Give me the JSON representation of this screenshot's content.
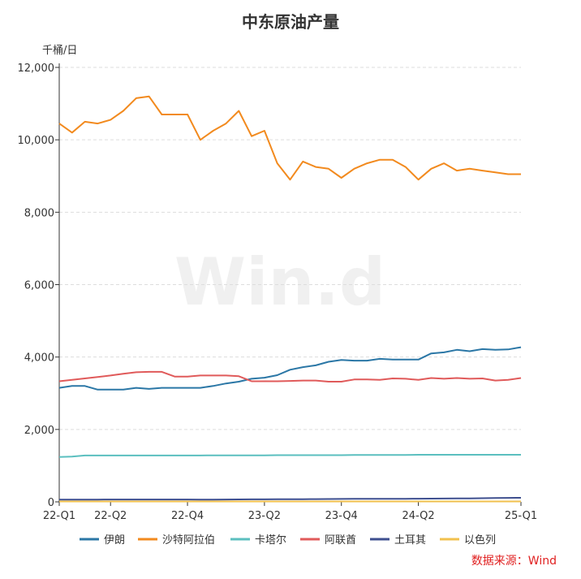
{
  "chart_data": {
    "type": "line",
    "title": "中东原油产量",
    "ylabel": "千桶/日",
    "xlabel": "",
    "ylim": [
      0,
      12000
    ],
    "yticks": [
      0,
      2000,
      4000,
      6000,
      8000,
      10000,
      12000
    ],
    "ytick_labels": [
      "0",
      "2,000",
      "4,000",
      "6,000",
      "8,000",
      "10,000",
      "12,000"
    ],
    "x_count": 37,
    "xtick_labels": [
      {
        "index": 0,
        "label": "22-Q1"
      },
      {
        "index": 4,
        "label": "22-Q2"
      },
      {
        "index": 10,
        "label": "22-Q4"
      },
      {
        "index": 16,
        "label": "23-Q2"
      },
      {
        "index": 22,
        "label": "23-Q4"
      },
      {
        "index": 28,
        "label": "24-Q2"
      },
      {
        "index": 36,
        "label": "25-Q1"
      }
    ],
    "grid": true,
    "legend_position": "bottom",
    "series": [
      {
        "name": "伊朗",
        "color": "#2b77a6",
        "values": [
          3150,
          3200,
          3200,
          3100,
          3100,
          3100,
          3150,
          3120,
          3150,
          3150,
          3150,
          3150,
          3200,
          3270,
          3320,
          3400,
          3430,
          3500,
          3650,
          3720,
          3770,
          3870,
          3920,
          3900,
          3900,
          3950,
          3930,
          3930,
          3930,
          4100,
          4130,
          4200,
          4160,
          4220,
          4200,
          4210,
          4270
        ]
      },
      {
        "name": "沙特阿拉伯",
        "color": "#f28a1e",
        "values": [
          10450,
          10200,
          10500,
          10450,
          10550,
          10800,
          11150,
          11200,
          10700,
          10700,
          10700,
          10000,
          10250,
          10450,
          10800,
          10100,
          10250,
          9350,
          8900,
          9400,
          9250,
          9200,
          8950,
          9200,
          9350,
          9450,
          9450,
          9250,
          8900,
          9200,
          9350,
          9150,
          9200,
          9150,
          9100,
          9050,
          9050
        ]
      },
      {
        "name": "卡塔尔",
        "color": "#5bbfbf",
        "values": [
          1240,
          1250,
          1280,
          1280,
          1280,
          1280,
          1280,
          1280,
          1280,
          1280,
          1280,
          1280,
          1285,
          1285,
          1285,
          1285,
          1285,
          1290,
          1290,
          1290,
          1290,
          1290,
          1290,
          1295,
          1295,
          1295,
          1295,
          1295,
          1300,
          1300,
          1300,
          1300,
          1300,
          1300,
          1300,
          1300,
          1300
        ]
      },
      {
        "name": "阿联酋",
        "color": "#e05a5a",
        "values": [
          3330,
          3370,
          3410,
          3450,
          3490,
          3540,
          3580,
          3590,
          3590,
          3460,
          3460,
          3490,
          3490,
          3490,
          3470,
          3330,
          3330,
          3330,
          3340,
          3350,
          3350,
          3320,
          3320,
          3380,
          3380,
          3370,
          3410,
          3400,
          3370,
          3420,
          3400,
          3420,
          3400,
          3410,
          3350,
          3370,
          3420
        ]
      },
      {
        "name": "土耳其",
        "color": "#3e4f8f",
        "values": [
          60,
          62,
          62,
          63,
          65,
          66,
          66,
          66,
          66,
          66,
          66,
          62,
          62,
          65,
          68,
          70,
          70,
          72,
          74,
          75,
          76,
          78,
          80,
          82,
          82,
          84,
          85,
          86,
          88,
          90,
          92,
          94,
          96,
          100,
          105,
          110,
          112
        ]
      },
      {
        "name": "以色列",
        "color": "#f2c14e",
        "values": [
          12,
          12,
          12,
          12,
          12,
          12,
          12,
          12,
          12,
          12,
          12,
          12,
          12,
          12,
          12,
          12,
          12,
          12,
          12,
          12,
          12,
          12,
          12,
          12,
          12,
          12,
          12,
          12,
          12,
          12,
          12,
          12,
          12,
          12,
          12,
          12,
          12
        ]
      }
    ],
    "source": "数据来源：Wind",
    "watermark": "Win.d"
  }
}
